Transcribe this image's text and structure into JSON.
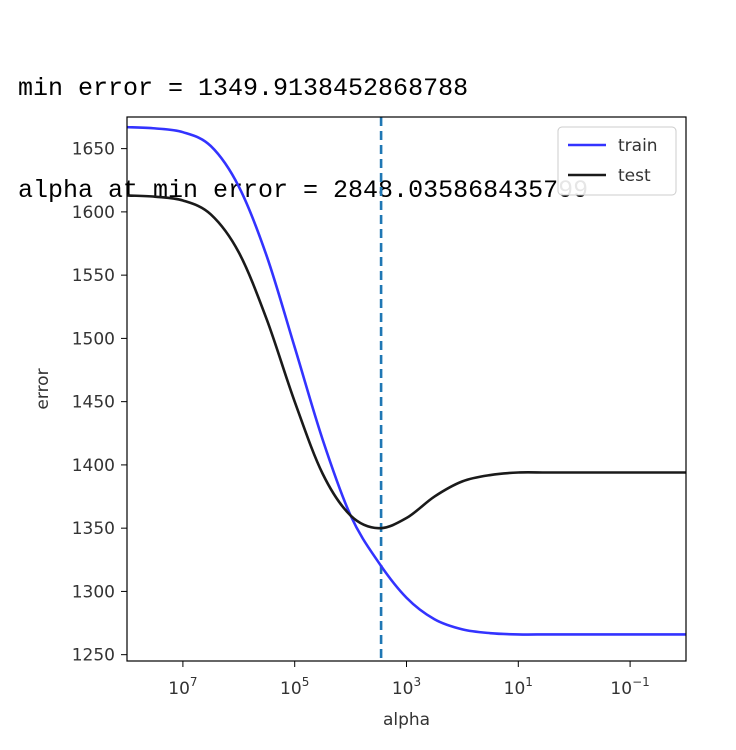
{
  "output": {
    "line1": "min error = 1349.9138452868788",
    "line2": "alpha at min error = 2848.035868435799"
  },
  "chart_data": {
    "type": "line",
    "xlabel": "alpha",
    "ylabel": "error",
    "x_scale": "log",
    "x_inverted": true,
    "xlim": [
      100000000,
      0.01
    ],
    "ylim": [
      1245,
      1675
    ],
    "x_ticks": [
      {
        "value": 10000000,
        "base": "10",
        "exp": "7"
      },
      {
        "value": 100000,
        "base": "10",
        "exp": "5"
      },
      {
        "value": 1000,
        "base": "10",
        "exp": "3"
      },
      {
        "value": 10,
        "base": "10",
        "exp": "1"
      },
      {
        "value": 0.1,
        "base": "10",
        "exp": "−1"
      }
    ],
    "y_ticks": [
      1250,
      1300,
      1350,
      1400,
      1450,
      1500,
      1550,
      1600,
      1650
    ],
    "legend_position": "top-right",
    "vline": {
      "x": 2848.035868435799,
      "style": "dashed",
      "color": "#1f77b4"
    },
    "series": [
      {
        "name": "train",
        "color": "#3333ff",
        "x": [
          100000000,
          31622776,
          10000000,
          3162278,
          1000000,
          316228,
          100000,
          31623,
          10000,
          3162,
          1000,
          316,
          100,
          31.6,
          10,
          3.16,
          1,
          0.316,
          0.1,
          0.0316,
          0.01
        ],
        "y": [
          1667,
          1666,
          1663,
          1652,
          1620,
          1565,
          1493,
          1420,
          1360,
          1323,
          1295,
          1278,
          1270,
          1267,
          1266,
          1266,
          1266,
          1266,
          1266,
          1266,
          1266
        ]
      },
      {
        "name": "test",
        "color": "#1a1a1a",
        "x": [
          100000000,
          31622776,
          10000000,
          3162278,
          1000000,
          316228,
          100000,
          31623,
          10000,
          3162,
          1000,
          316,
          100,
          31.6,
          10,
          3.16,
          1,
          0.316,
          0.1,
          0.0316,
          0.01
        ],
        "y": [
          1613,
          1612,
          1609,
          1598,
          1568,
          1515,
          1450,
          1393,
          1360,
          1350,
          1358,
          1375,
          1387,
          1392,
          1394,
          1394,
          1394,
          1394,
          1394,
          1394,
          1394
        ]
      }
    ]
  }
}
